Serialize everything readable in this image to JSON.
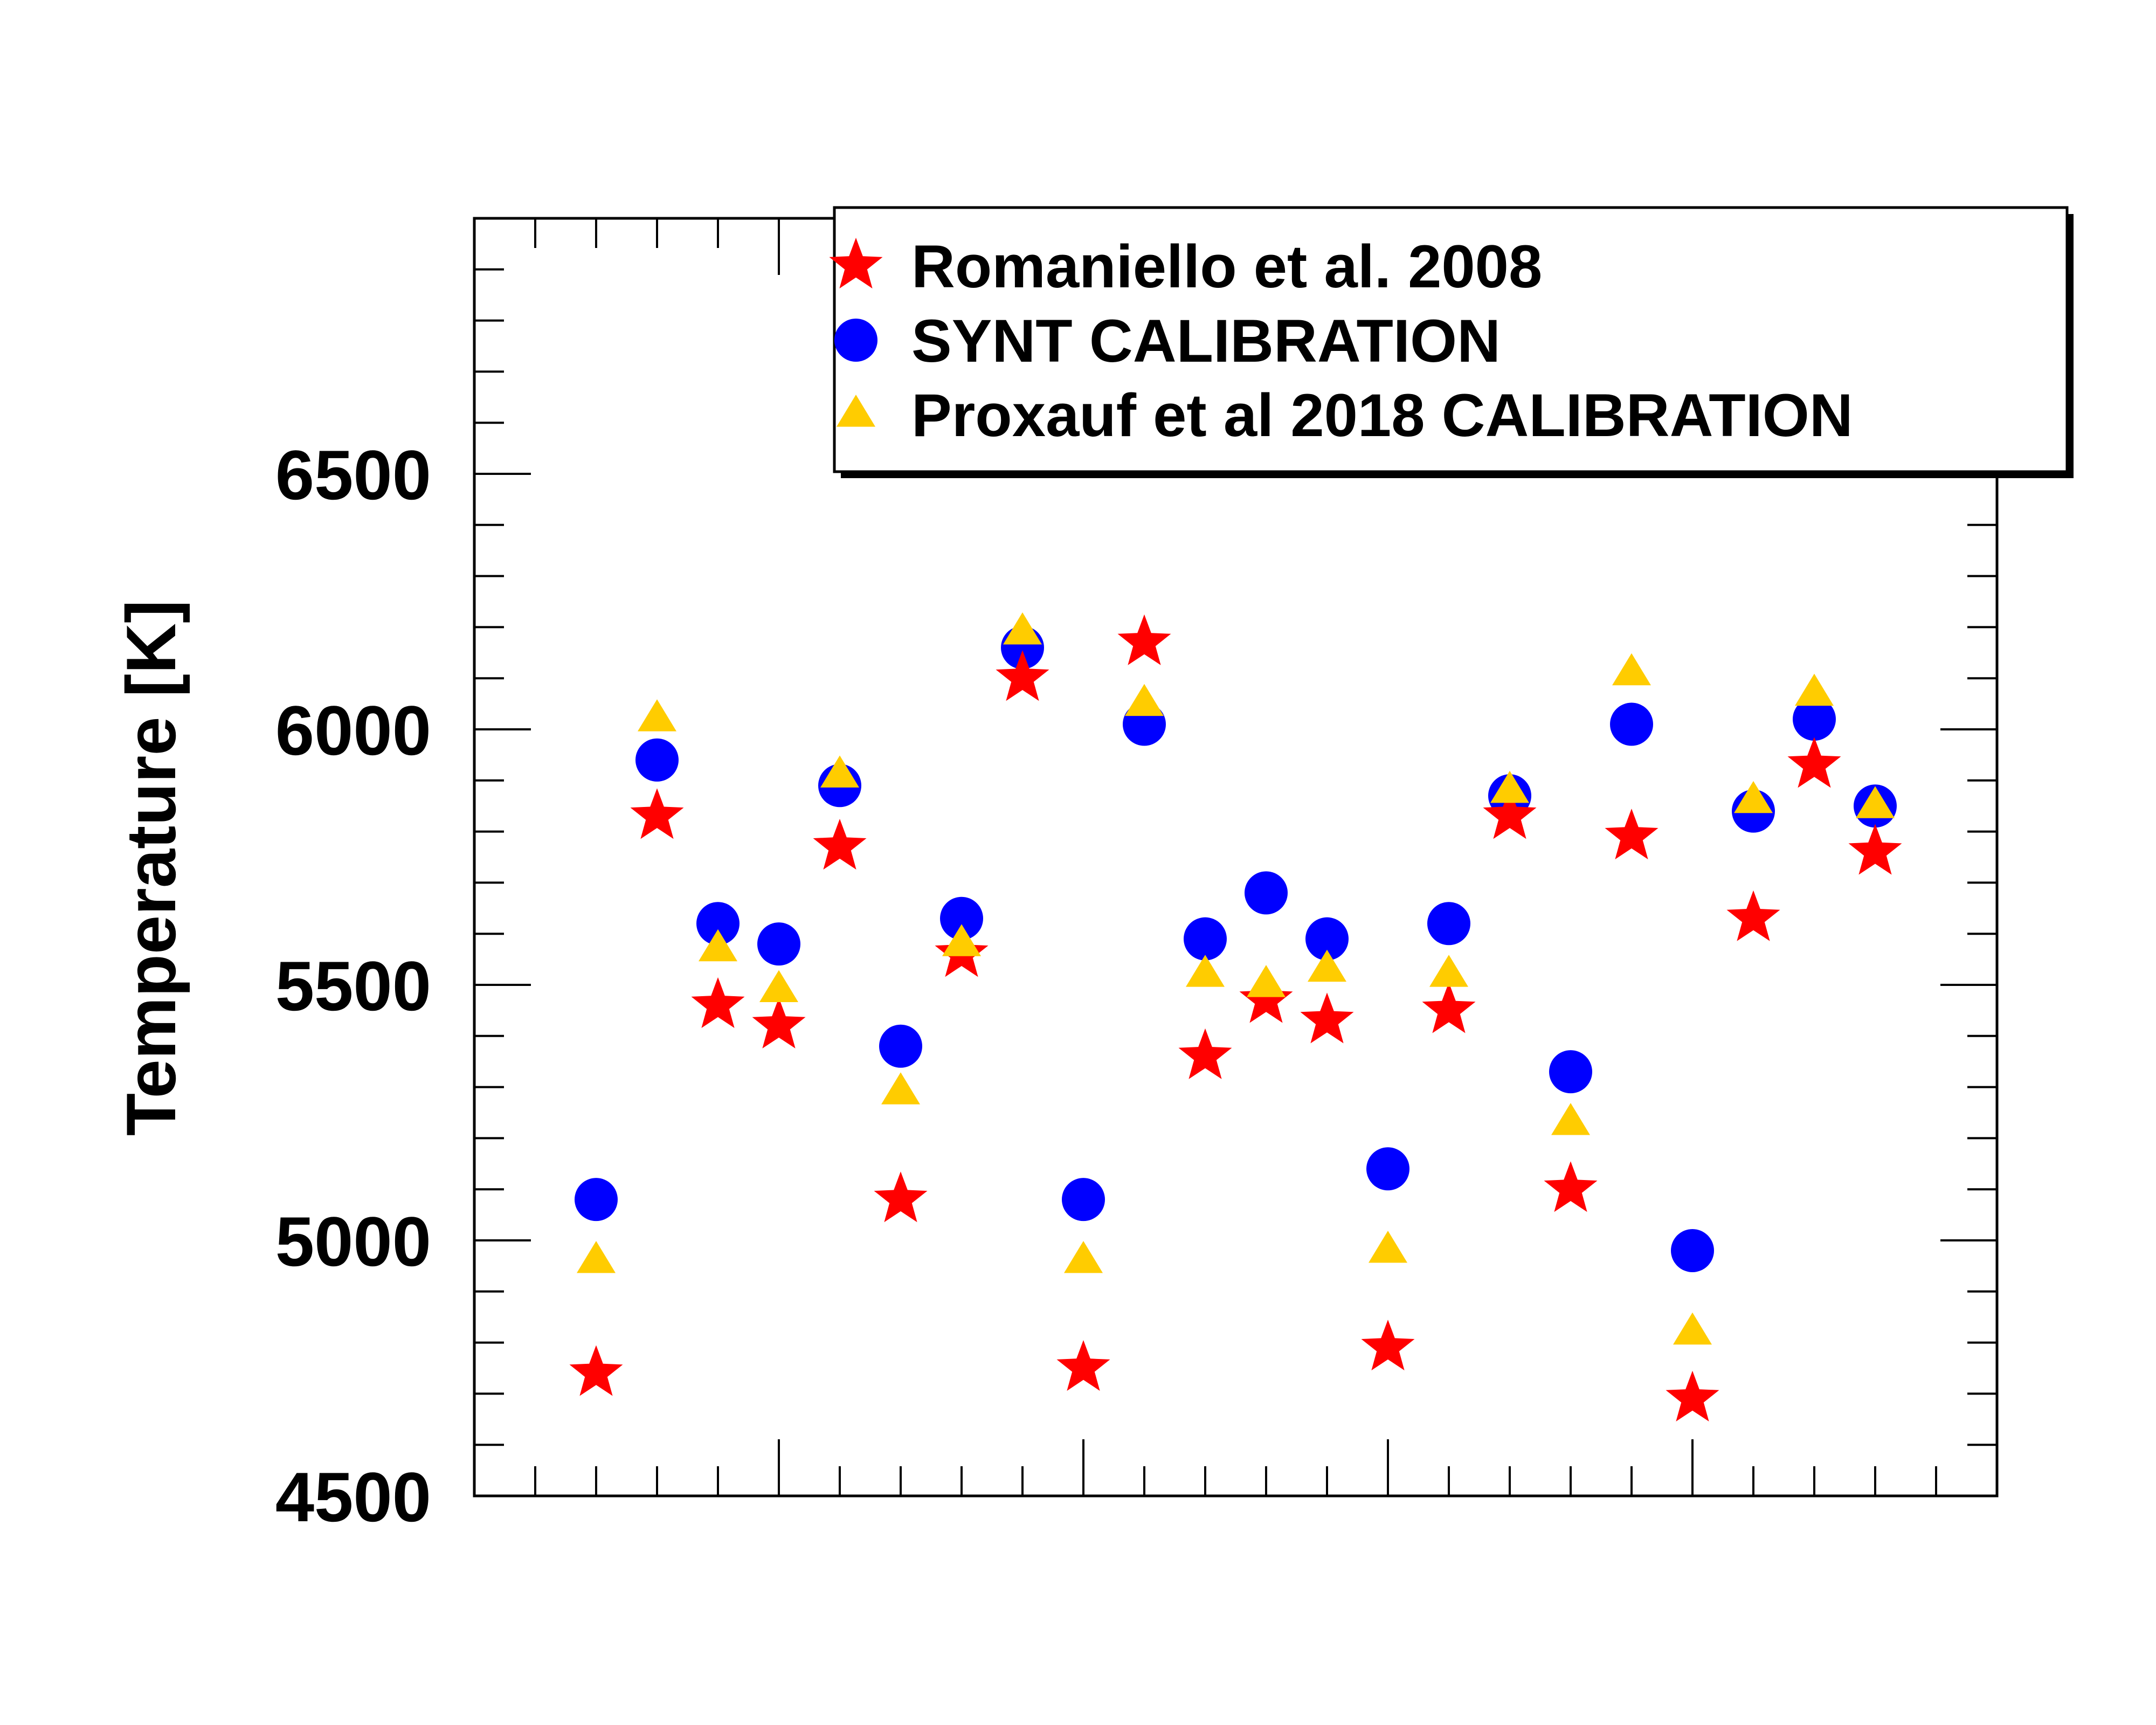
{
  "chart_data": {
    "type": "scatter",
    "title": "",
    "xlabel": "",
    "ylabel": "Temperature [K]",
    "ylim": [
      4500,
      7000
    ],
    "xlim": [
      0,
      25
    ],
    "yticks": [
      "4500",
      "5000",
      "5500",
      "6000",
      "6500"
    ],
    "grid": false,
    "legend_position": "top-right",
    "x": [
      2,
      3,
      4,
      5,
      6,
      7,
      8,
      9,
      10,
      11,
      12,
      13,
      14,
      15,
      16,
      17,
      18,
      19,
      20,
      21,
      22,
      23
    ],
    "series": [
      {
        "name": "Romaniello et al. 2008",
        "marker": "star",
        "color": "#ff0000",
        "values": [
          4740,
          5830,
          5460,
          5420,
          5770,
          5080,
          5560,
          6100,
          4750,
          6170,
          5360,
          5470,
          5430,
          4790,
          5450,
          5830,
          5100,
          5790,
          4690,
          5630,
          5930,
          5760
        ]
      },
      {
        "name": "SYNT CALIBRATION",
        "marker": "circle",
        "color": "#0000ff",
        "values": [
          5080,
          5940,
          5620,
          5580,
          5890,
          5380,
          5630,
          6160,
          5080,
          6010,
          5590,
          5680,
          5590,
          5140,
          5620,
          5870,
          5330,
          6010,
          4980,
          5840,
          6020,
          5850
        ]
      },
      {
        "name": "Proxauf et al 2018 CALIBRATION",
        "marker": "triangle",
        "color": "#ffcc00",
        "values": [
          4960,
          6020,
          5570,
          5490,
          5910,
          5290,
          5580,
          6190,
          4960,
          6050,
          5520,
          5500,
          5530,
          4980,
          5520,
          5880,
          5230,
          6110,
          4820,
          5860,
          6070,
          5850
        ]
      }
    ]
  }
}
